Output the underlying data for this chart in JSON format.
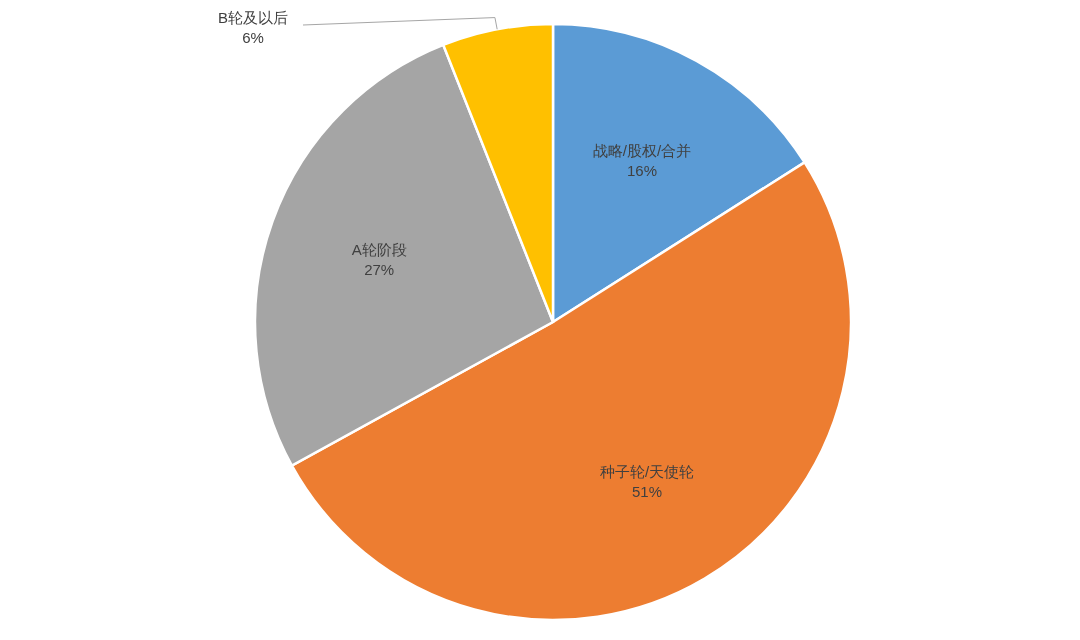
{
  "chart_data": {
    "type": "pie",
    "categories": [
      "战略/股权/合并",
      "种子轮/天使轮",
      "A轮阶段",
      "B轮及以后"
    ],
    "values": [
      16,
      51,
      27,
      6
    ],
    "colors": [
      "#5b9bd5",
      "#ed7d31",
      "#a5a5a5",
      "#ffc000"
    ],
    "value_labels": [
      "16%",
      "51%",
      "27%",
      "6%"
    ]
  }
}
